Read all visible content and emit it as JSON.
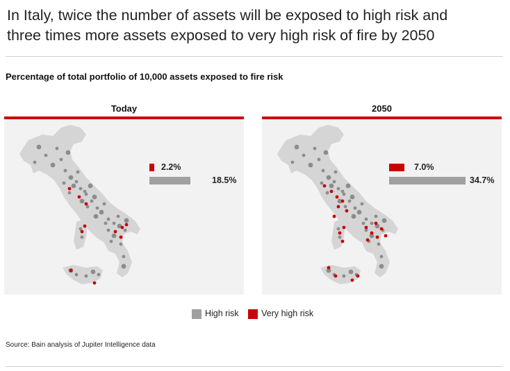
{
  "title_line1": "In Italy, twice the number of assets will be exposed to high risk and",
  "title_line2": "three times more assets exposed to very high risk of fire by 2050",
  "subtitle": "Percentage of total portfolio of 10,000 assets exposed to fire risk",
  "source": "Source: Bain analysis of Jupiter Intelligence data",
  "colors": {
    "high_risk": "#a0a0a0",
    "very_high_risk": "#cc0000",
    "map_fill": "#d5d5d5",
    "panel_bg": "#f2f2f2"
  },
  "chart_data": [
    {
      "type": "bar",
      "title": "Today",
      "series": [
        {
          "name": "Very high risk",
          "value": 2.2,
          "label": "2.2%"
        },
        {
          "name": "High risk",
          "value": 18.5,
          "label": "18.5%"
        }
      ]
    },
    {
      "type": "bar",
      "title": "2050",
      "series": [
        {
          "name": "Very high risk",
          "value": 7.0,
          "label": "7.0%"
        },
        {
          "name": "High risk",
          "value": 34.7,
          "label": "34.7%"
        }
      ]
    }
  ],
  "legend": [
    {
      "label": "High risk",
      "color": "#a0a0a0"
    },
    {
      "label": "Very high risk",
      "color": "#cc0000"
    }
  ]
}
